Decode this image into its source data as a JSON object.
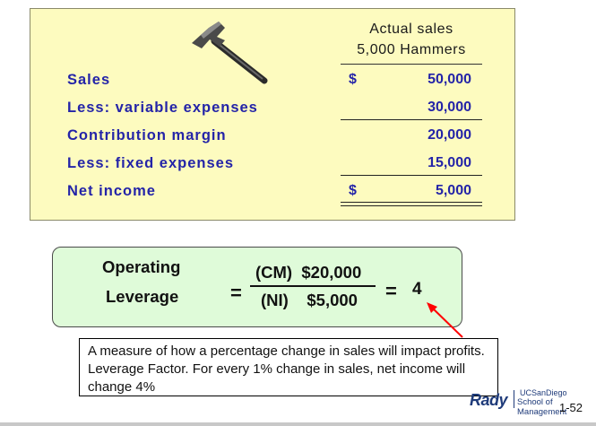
{
  "statement": {
    "column_header_line1": "Actual sales",
    "column_header_line2": "5,000 Hammers",
    "rows": [
      {
        "label": "Sales",
        "dollar": "$",
        "amount": "50,000"
      },
      {
        "label": "Less: variable expenses",
        "dollar": "",
        "amount": "30,000"
      },
      {
        "label": "Contribution margin",
        "dollar": "",
        "amount": "20,000"
      },
      {
        "label": "Less: fixed expenses",
        "dollar": "",
        "amount": "15,000"
      },
      {
        "label": "Net income",
        "dollar": "$",
        "amount": "5,000"
      }
    ]
  },
  "leverage": {
    "label_line1": "Operating",
    "label_line2": "Leverage",
    "equals": "=",
    "numerator": "(CM)  $20,000",
    "denominator": "(NI)    $5,000",
    "equals2": "=",
    "result": "4"
  },
  "callout": {
    "text": "A measure of how a percentage change in sales will impact profits.  Leverage Factor.  For every 1% change in sales, net income will change 4%"
  },
  "footer": {
    "logo_rady": "Rady",
    "logo_ucsd": "UCSanDiego",
    "logo_school": "School of Management",
    "page_number": "1-52"
  },
  "colors": {
    "panel_background": "#fdfbbf",
    "label_text": "#2424a8",
    "leverage_box_background": "#dffbd9",
    "arrow": "#ff0000"
  }
}
